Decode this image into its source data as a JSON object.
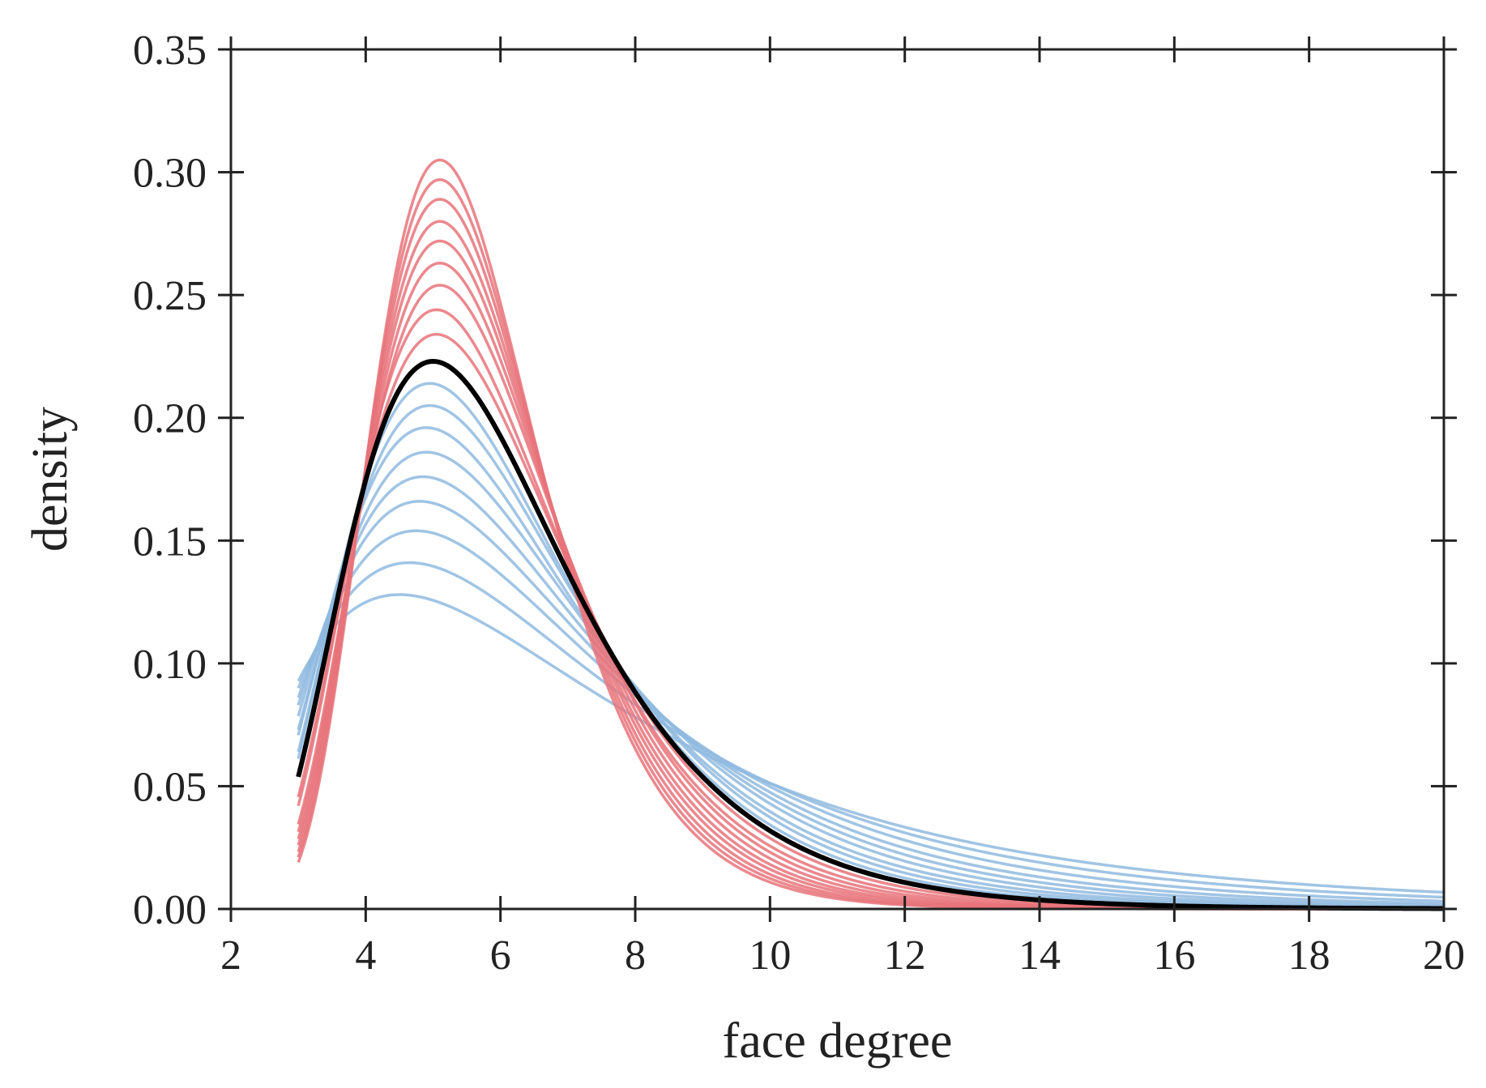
{
  "chart_data": {
    "type": "line",
    "title": "",
    "xlabel": "face degree",
    "ylabel": "density",
    "xlim": [
      2,
      20
    ],
    "ylim": [
      0,
      0.35
    ],
    "xticks": [
      2,
      4,
      6,
      8,
      10,
      12,
      14,
      16,
      18,
      20
    ],
    "yticks": [
      0.0,
      0.05,
      0.1,
      0.15,
      0.2,
      0.25,
      0.3,
      0.35
    ],
    "xtick_labels": [
      "2",
      "4",
      "6",
      "8",
      "10",
      "12",
      "14",
      "16",
      "18",
      "20"
    ],
    "ytick_labels": [
      "0.00",
      "0.05",
      "0.10",
      "0.15",
      "0.20",
      "0.25",
      "0.30",
      "0.35"
    ],
    "grid": false,
    "legend": "none",
    "x_range_of_curves": [
      3,
      20
    ],
    "description_of_series": "Family of right-skewed unimodal density curves over face degree; red curves are narrower and taller, blue curves wider and lower; black curve lies between.",
    "series": [
      {
        "group": "red",
        "color": "#e8737a",
        "peak_x": 5.1,
        "peak_y": 0.305
      },
      {
        "group": "red",
        "color": "#e8737a",
        "peak_x": 5.1,
        "peak_y": 0.297
      },
      {
        "group": "red",
        "color": "#e8737a",
        "peak_x": 5.1,
        "peak_y": 0.289
      },
      {
        "group": "red",
        "color": "#e8737a",
        "peak_x": 5.1,
        "peak_y": 0.28
      },
      {
        "group": "red",
        "color": "#e8737a",
        "peak_x": 5.1,
        "peak_y": 0.272
      },
      {
        "group": "red",
        "color": "#e8737a",
        "peak_x": 5.1,
        "peak_y": 0.263
      },
      {
        "group": "red",
        "color": "#e8737a",
        "peak_x": 5.1,
        "peak_y": 0.254
      },
      {
        "group": "red",
        "color": "#e8737a",
        "peak_x": 5.05,
        "peak_y": 0.244
      },
      {
        "group": "red",
        "color": "#e8737a",
        "peak_x": 5.05,
        "peak_y": 0.234
      },
      {
        "group": "black",
        "color": "#000000",
        "peak_x": 5.0,
        "peak_y": 0.223
      },
      {
        "group": "blue",
        "color": "#8fbadf",
        "peak_x": 4.95,
        "peak_y": 0.214
      },
      {
        "group": "blue",
        "color": "#8fbadf",
        "peak_x": 4.95,
        "peak_y": 0.205
      },
      {
        "group": "blue",
        "color": "#8fbadf",
        "peak_x": 4.9,
        "peak_y": 0.196
      },
      {
        "group": "blue",
        "color": "#8fbadf",
        "peak_x": 4.9,
        "peak_y": 0.186
      },
      {
        "group": "blue",
        "color": "#8fbadf",
        "peak_x": 4.85,
        "peak_y": 0.176
      },
      {
        "group": "blue",
        "color": "#8fbadf",
        "peak_x": 4.8,
        "peak_y": 0.166
      },
      {
        "group": "blue",
        "color": "#8fbadf",
        "peak_x": 4.75,
        "peak_y": 0.154
      },
      {
        "group": "blue",
        "color": "#8fbadf",
        "peak_x": 4.65,
        "peak_y": 0.141
      },
      {
        "group": "blue",
        "color": "#8fbadf",
        "peak_x": 4.5,
        "peak_y": 0.128
      }
    ],
    "colors": {
      "red": "#e8737a",
      "blue": "#8fbadf",
      "black": "#000000",
      "axis": "#222222"
    }
  }
}
